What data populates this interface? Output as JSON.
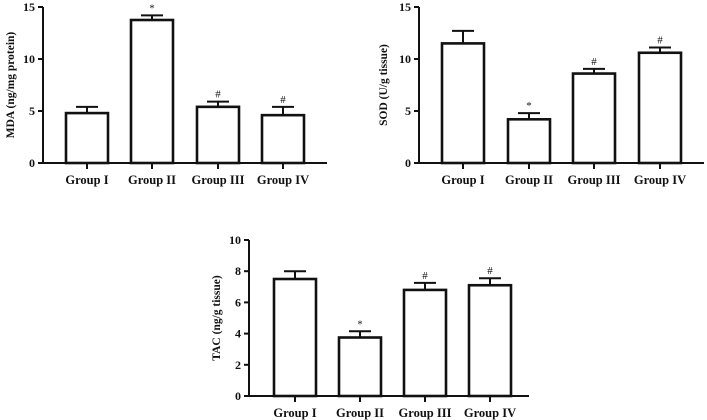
{
  "figure": {
    "panels": [
      {
        "id": "mda",
        "ylabel": "MDA (ng/mg protein)",
        "yticks": [
          "0",
          "5",
          "10",
          "15"
        ]
      },
      {
        "id": "sod",
        "ylabel": "SOD (U/g tissue)",
        "yticks": [
          "0",
          "5",
          "10",
          "15"
        ]
      },
      {
        "id": "tac",
        "ylabel": "TAC (ng/g tissue)",
        "yticks": [
          "0",
          "2",
          "4",
          "6",
          "8",
          "10"
        ]
      }
    ]
  },
  "chart_data": [
    {
      "type": "bar",
      "title": "",
      "xlabel": "",
      "ylabel": "MDA (ng/mg protein)",
      "categories": [
        "Group I",
        "Group II",
        "Group III",
        "Group IV"
      ],
      "values": [
        4.8,
        13.75,
        5.4,
        4.6
      ],
      "error": [
        0.6,
        0.45,
        0.5,
        0.8
      ],
      "annotations": [
        "",
        "*",
        "#",
        "#"
      ],
      "ylim": [
        0,
        15
      ],
      "yticks": [
        0,
        5,
        10,
        15
      ],
      "grid": false,
      "legend": null
    },
    {
      "type": "bar",
      "title": "",
      "xlabel": "",
      "ylabel": "SOD (U/g tissue)",
      "categories": [
        "Group I",
        "Group II",
        "Group III",
        "Group IV"
      ],
      "values": [
        11.5,
        4.2,
        8.6,
        10.6
      ],
      "error": [
        1.2,
        0.6,
        0.45,
        0.5
      ],
      "annotations": [
        "",
        "*",
        "#",
        "#"
      ],
      "ylim": [
        0,
        15
      ],
      "yticks": [
        0,
        5,
        10,
        15
      ],
      "grid": false,
      "legend": null
    },
    {
      "type": "bar",
      "title": "",
      "xlabel": "",
      "ylabel": "TAC (ng/g tissue)",
      "categories": [
        "Group I",
        "Group II",
        "Group III",
        "Group IV"
      ],
      "values": [
        7.5,
        3.75,
        6.8,
        7.1
      ],
      "error": [
        0.5,
        0.4,
        0.45,
        0.45
      ],
      "annotations": [
        "",
        "*",
        "#",
        "#"
      ],
      "ylim": [
        0,
        10
      ],
      "yticks": [
        0,
        2,
        4,
        6,
        8,
        10
      ],
      "grid": false,
      "legend": null
    }
  ]
}
